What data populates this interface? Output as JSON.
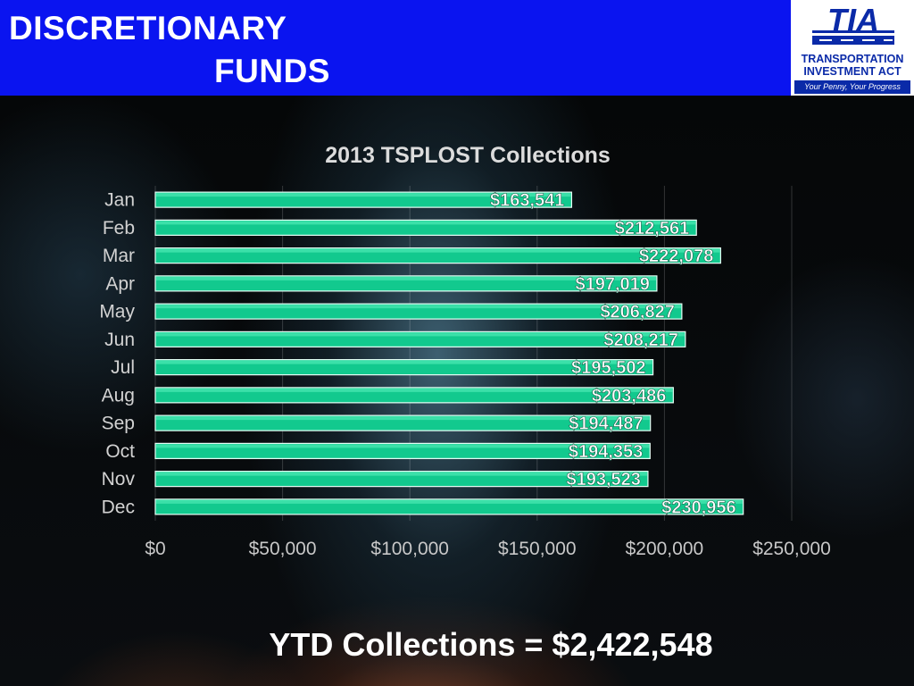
{
  "header": {
    "title_line1": "DISCRETIONARY",
    "title_line2": "FUNDS"
  },
  "logo": {
    "mark": "TIA",
    "line1": "TRANSPORTATION",
    "line2": "INVESTMENT ACT",
    "tagline": "Your Penny, Your Progress"
  },
  "colors": {
    "header_bg": "#0a14f0",
    "bar": "#12c98e",
    "bar_highlight": "#46e6b0"
  },
  "chart_data": {
    "type": "bar",
    "orientation": "horizontal",
    "title": "2013 TSPLOST  Collections",
    "categories": [
      "Jan",
      "Feb",
      "Mar",
      "Apr",
      "May",
      "Jun",
      "Jul",
      "Aug",
      "Sep",
      "Oct",
      "Nov",
      "Dec"
    ],
    "values": [
      163541,
      212561,
      222078,
      197019,
      206827,
      208217,
      195502,
      203486,
      194487,
      194353,
      193523,
      230956
    ],
    "data_labels": [
      "$163,541",
      "$212,561",
      "$222,078",
      "$197,019",
      "$206,827",
      "$208,217",
      "$195,502",
      "$203,486",
      "$194,487",
      "$194,353",
      "$193,523",
      "$230,956"
    ],
    "xlim": [
      0,
      250000
    ],
    "x_ticks": [
      0,
      50000,
      100000,
      150000,
      200000,
      250000
    ],
    "x_tick_labels": [
      "$0",
      "$50,000",
      "$100,000",
      "$150,000",
      "$200,000",
      "$250,000"
    ],
    "grid": true,
    "legend": "none"
  },
  "footer": {
    "ytd_text": "YTD Collections = $2,422,548"
  }
}
